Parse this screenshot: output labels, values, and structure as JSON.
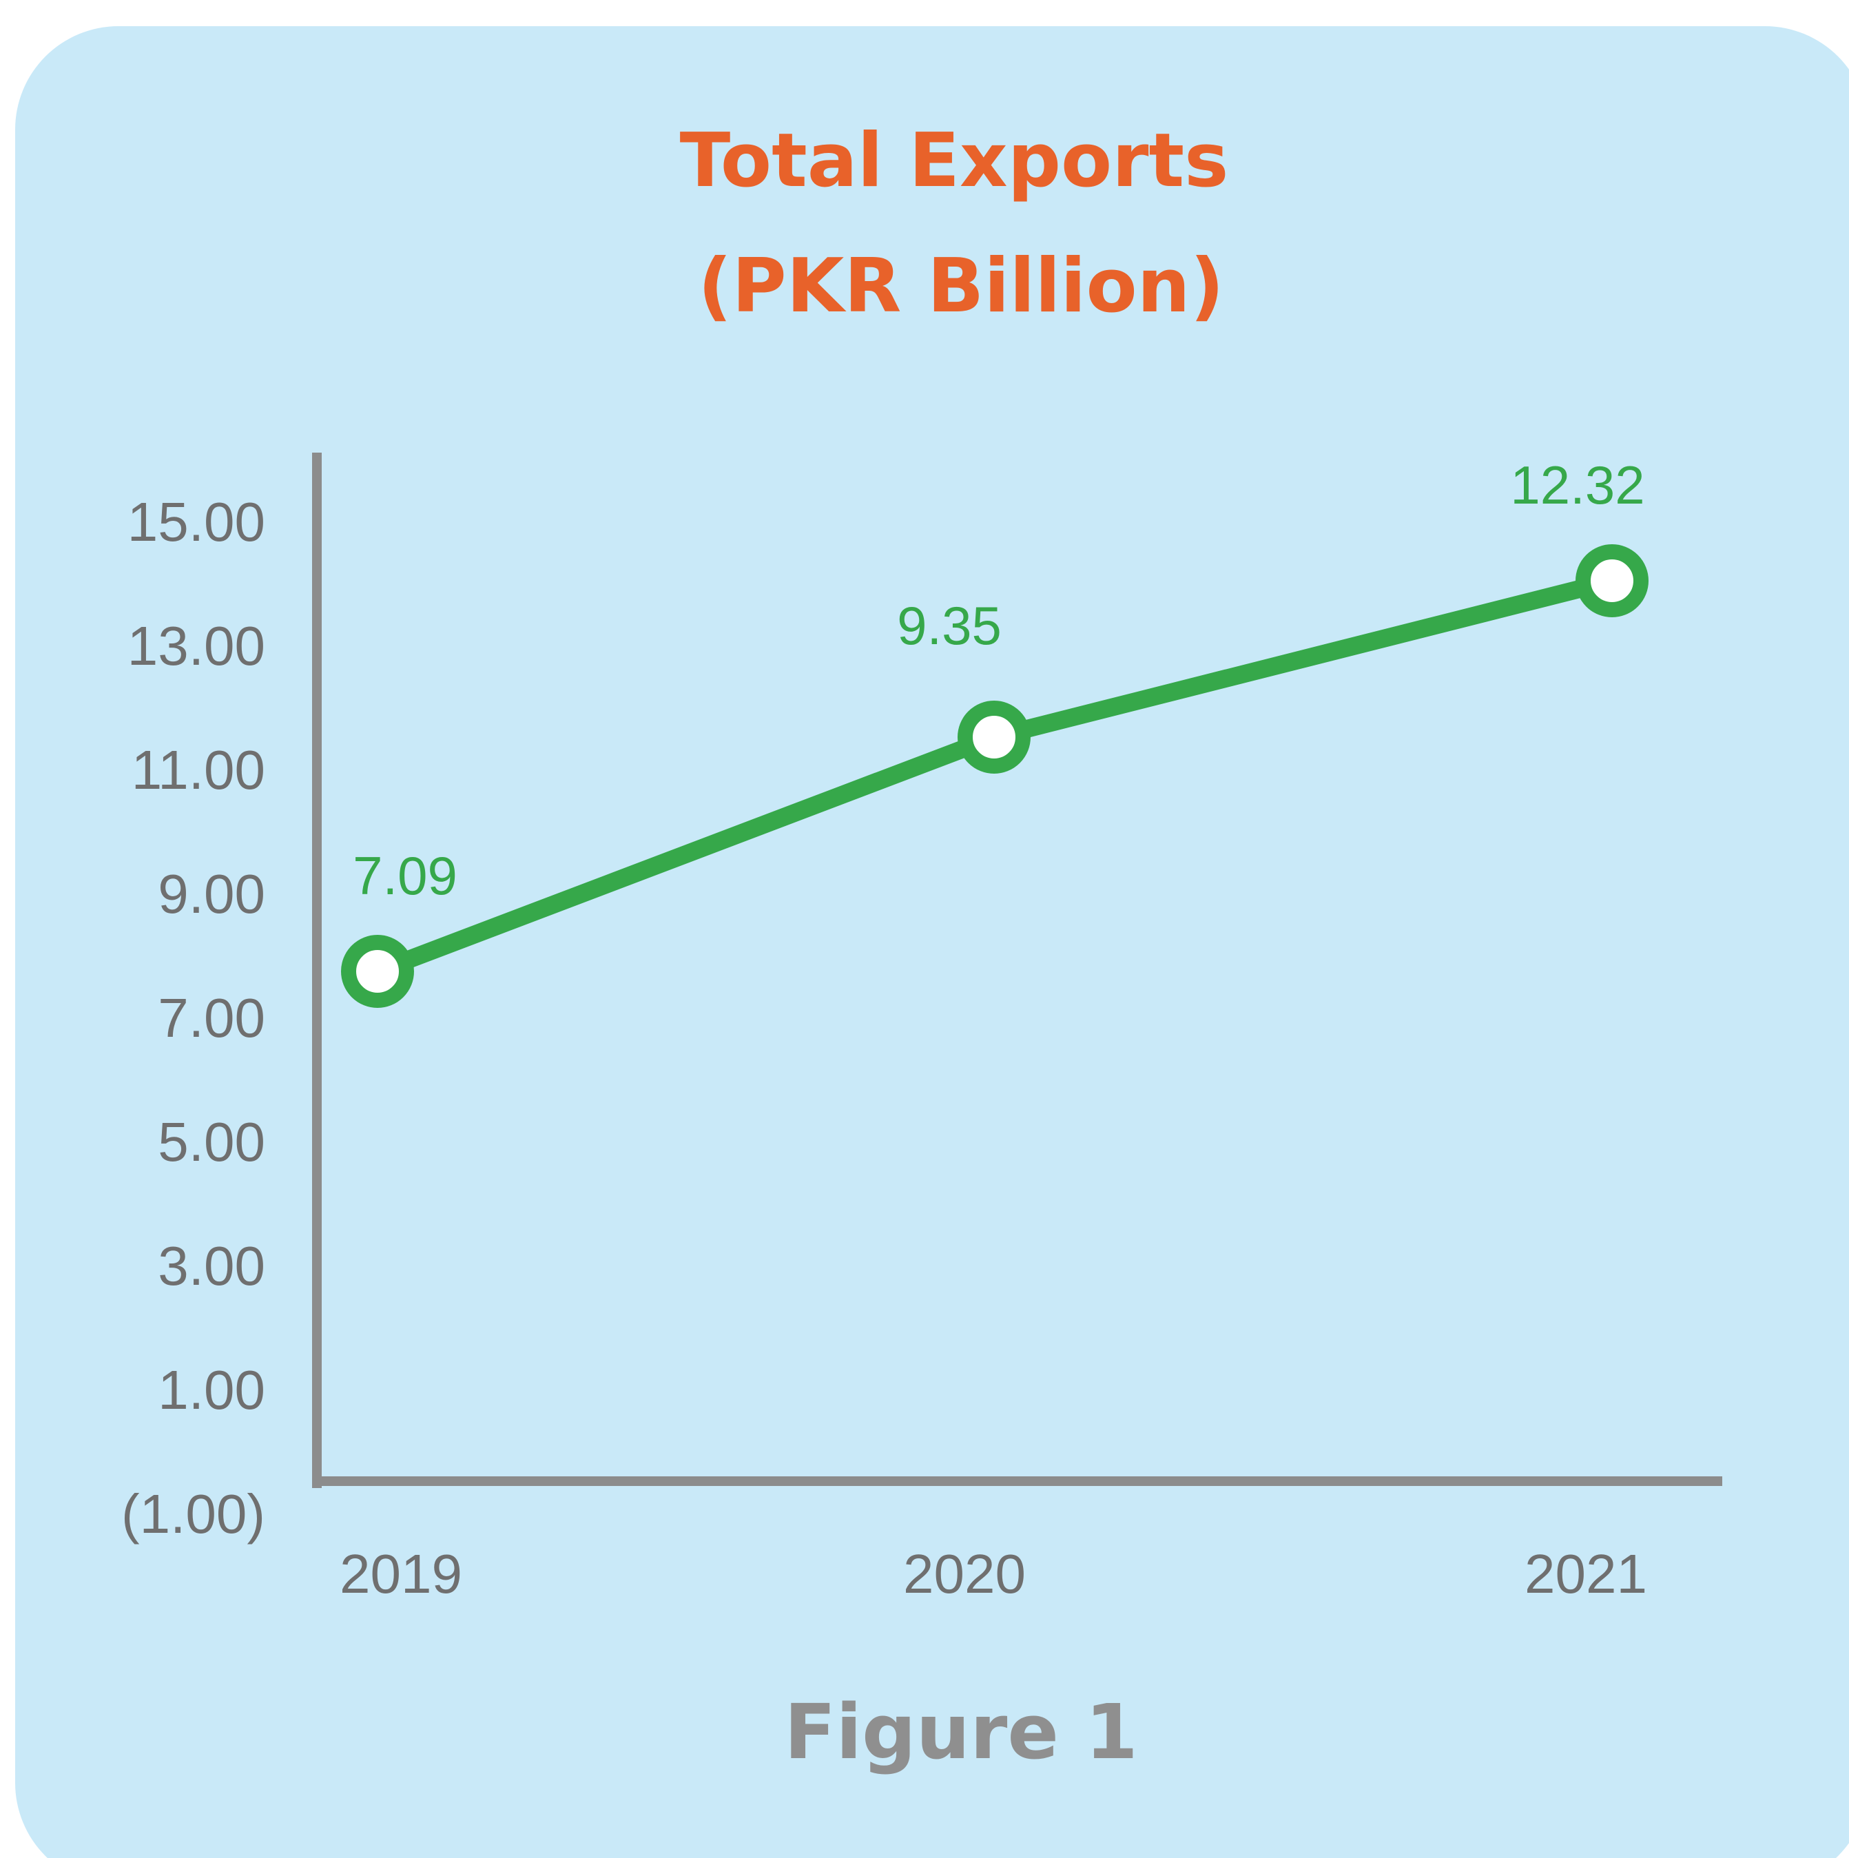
{
  "colors": {
    "background": "#c9e9f8",
    "title": "#e8622a",
    "line": "#36a84a",
    "marker_fill": "#ffffff",
    "axis": "#8c8c8c",
    "tick_text": "#6f6f6f",
    "caption": "#8f8f8f"
  },
  "caption": "Figure 1",
  "chart_data": {
    "type": "line",
    "title_line1": "Total Exports",
    "title_line2": "(PKR Billion)",
    "categories": [
      "2019",
      "2020",
      "2021"
    ],
    "series": [
      {
        "values": [
          7.09,
          9.35,
          12.32
        ],
        "labels": [
          "7.09",
          "9.35",
          "12.32"
        ]
      }
    ],
    "yticks": [
      15,
      13,
      11,
      9,
      7,
      5,
      3,
      1,
      -1
    ],
    "ytick_labels": [
      "15.00",
      "13.00",
      "11.00",
      "9.00",
      "7.00",
      "5.00",
      "3.00",
      "1.00",
      "(1.00)"
    ],
    "ylim": [
      -1,
      15
    ],
    "xlabel": "",
    "ylabel": "",
    "grid": false,
    "legend": "none"
  }
}
